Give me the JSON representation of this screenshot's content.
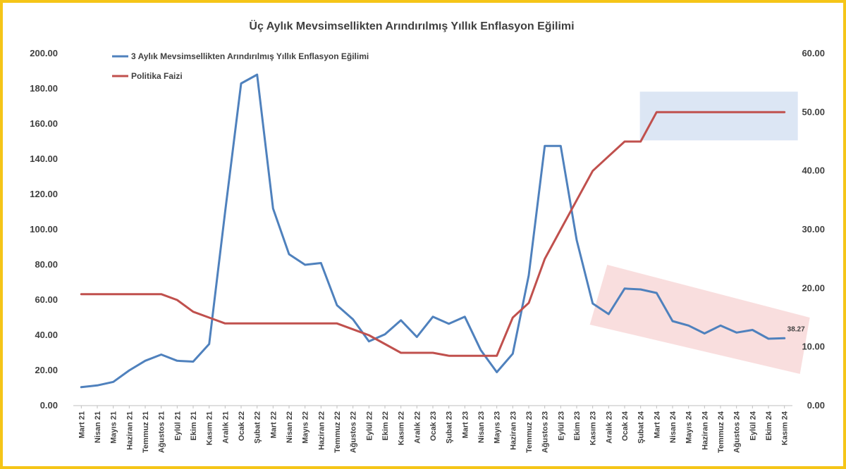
{
  "chart_data": {
    "type": "line",
    "title": "Üç Aylık Mevsimsellikten Arındırılmış Yıllık Enflasyon Eğilimi",
    "xlabel": "",
    "ylabel": "",
    "ylim_left": [
      0,
      200
    ],
    "ylim_right": [
      0,
      60
    ],
    "yticks_left": [
      "0.00",
      "20.00",
      "40.00",
      "60.00",
      "80.00",
      "100.00",
      "120.00",
      "140.00",
      "160.00",
      "180.00",
      "200.00"
    ],
    "yticks_right": [
      "0.00",
      "10.00",
      "20.00",
      "30.00",
      "40.00",
      "50.00",
      "60.00"
    ],
    "grid": false,
    "legend_position": "top-left",
    "categories": [
      "Mart 21",
      "Nisan 21",
      "Mayıs 21",
      "Haziran 21",
      "Temmuz 21",
      "Ağustos 21",
      "Eylül 21",
      "Ekim 21",
      "Kasım 21",
      "Aralık 21",
      "Ocak 22",
      "Şubat 22",
      "Mart 22",
      "Nisan 22",
      "Mayıs 22",
      "Haziran 22",
      "Temmuz 22",
      "Ağustos 22",
      "Eylül 22",
      "Ekim 22",
      "Kasım 22",
      "Aralık 22",
      "Ocak 23",
      "Şubat 23",
      "Mart 23",
      "Nisan 23",
      "Mayıs 23",
      "Haziran 23",
      "Temmuz 23",
      "Ağustos 23",
      "Eylül 23",
      "Ekim 23",
      "Kasım 23",
      "Aralık 23",
      "Ocak 24",
      "Şubat 24",
      "Mart 24",
      "Nisan 24",
      "Mayıs 24",
      "Haziran 24",
      "Temmuz 24",
      "Ağustos 24",
      "Eylül 24",
      "Ekim 24",
      "Kasım 24"
    ],
    "series": [
      {
        "name": "3 Aylık Mevsimsellikten Arındırılmış Yıllık Enflasyon Eğilimi",
        "axis": "left",
        "color": "#4f81bd",
        "values": [
          10.5,
          11.5,
          13.5,
          20.0,
          25.5,
          29.0,
          25.5,
          25.0,
          35.0,
          110.0,
          183.0,
          188.0,
          112.0,
          86.0,
          80.0,
          81.0,
          57.0,
          49.0,
          36.5,
          40.5,
          48.5,
          39.0,
          50.5,
          46.5,
          50.5,
          31.5,
          19.0,
          29.5,
          74.0,
          147.5,
          147.5,
          94.0,
          58.0,
          52.0,
          66.5,
          66.0,
          64.0,
          48.0,
          45.5,
          41.0,
          45.5,
          41.5,
          43.0,
          38.0,
          38.27
        ]
      },
      {
        "name": "Politika Faizi",
        "axis": "right",
        "color": "#c0504d",
        "values": [
          19,
          19,
          19,
          19,
          19,
          19,
          18,
          16,
          15,
          14,
          14,
          14,
          14,
          14,
          14,
          14,
          14,
          13,
          12,
          10.5,
          9,
          9,
          9,
          8.5,
          8.5,
          8.5,
          8.5,
          15,
          17.5,
          25,
          30,
          35,
          40,
          42.5,
          45,
          45,
          50,
          50,
          50,
          50,
          50,
          50,
          50,
          50,
          50
        ]
      }
    ],
    "annotations": [
      {
        "text": "38.27",
        "series": 0,
        "index": 44
      }
    ],
    "highlight_colors": {
      "policy_box": "#dce6f4",
      "trend_band": "#f8dada"
    }
  }
}
